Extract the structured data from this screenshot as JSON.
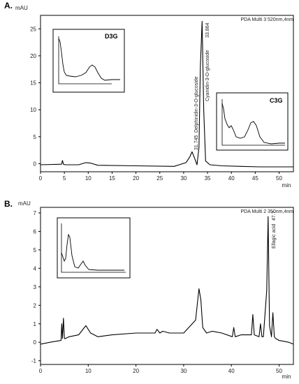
{
  "chart_data": [
    {
      "type": "line",
      "panel": "A.",
      "ylabel": "mAU",
      "xlabel": "min",
      "header": "PDA Multi 3 520nm,4nm",
      "xlim": [
        0,
        53
      ],
      "ylim": [
        -1.5,
        27.5
      ],
      "x_ticks": [
        "0",
        "5",
        "10",
        "15",
        "20",
        "25",
        "30",
        "35",
        "40",
        "45",
        "50"
      ],
      "y_ticks": [
        "0",
        "5",
        "10",
        "15",
        "20",
        "25"
      ],
      "series": [
        {
          "x": [
            0,
            4.4,
            4.6,
            4.8,
            5.2,
            8,
            9.5,
            10.5,
            12,
            20,
            28,
            30.5,
            31.3,
            31.75,
            32.3,
            32.8,
            33.2,
            33.5,
            33.86,
            34.2,
            34.6,
            35.5,
            38,
            42,
            46,
            50,
            53
          ],
          "y": [
            -0.2,
            -0.1,
            0.6,
            -0.1,
            -0.2,
            -0.2,
            0.2,
            0.1,
            -0.3,
            -0.4,
            -0.5,
            0.2,
            1.3,
            2.2,
            1.0,
            -0.2,
            3.0,
            18.0,
            26.4,
            10.0,
            0.5,
            -0.2,
            -0.4,
            -0.5,
            -0.6,
            -0.6,
            -0.6
          ]
        }
      ],
      "annotations": [
        {
          "text": "31.745",
          "x": 31.745
        },
        {
          "text": "Delphinidin-3-O-glucoside",
          "x": 31.745
        },
        {
          "text": "33.864",
          "x": 33.864
        },
        {
          "text": "Cyanidin-3-O-glucoside",
          "x": 33.864
        }
      ],
      "insets": [
        {
          "label": "D3G"
        },
        {
          "label": "C3G"
        }
      ]
    },
    {
      "type": "line",
      "panel": "B.",
      "ylabel": "mAU",
      "xlabel": "min",
      "header": "PDA Multi 2 350nm,4nm",
      "xlim": [
        0,
        53
      ],
      "ylim": [
        -1.2,
        7.3
      ],
      "x_ticks": [
        "0",
        "10",
        "20",
        "30",
        "40",
        "50"
      ],
      "y_ticks": [
        "-1",
        "0",
        "1",
        "2",
        "3",
        "4",
        "5",
        "6",
        "7"
      ],
      "series": [
        {
          "x": [
            0,
            2,
            4.3,
            4.45,
            4.6,
            4.8,
            5.0,
            5.2,
            6,
            8,
            9.5,
            10.5,
            12,
            15,
            20,
            24,
            24.4,
            25,
            25.6,
            27,
            30,
            32.5,
            33.2,
            33.6,
            34.0,
            34.8,
            36,
            38,
            40.2,
            40.5,
            40.8,
            42,
            44.2,
            44.5,
            44.8,
            45.8,
            46.1,
            46.4,
            46.7,
            47.4,
            47.7,
            48.0,
            48.4,
            48.7,
            49.0,
            49.3,
            50,
            52,
            53
          ],
          "y": [
            -0.1,
            0.0,
            0.1,
            1.0,
            0.2,
            1.3,
            0.2,
            0.2,
            0.3,
            0.4,
            0.9,
            0.5,
            0.3,
            0.4,
            0.5,
            0.5,
            0.7,
            0.5,
            0.6,
            0.5,
            0.5,
            1.2,
            2.9,
            2.3,
            0.8,
            0.5,
            0.6,
            0.5,
            0.3,
            0.8,
            0.3,
            0.4,
            0.4,
            1.5,
            0.4,
            0.3,
            1.0,
            0.3,
            0.3,
            2.8,
            6.8,
            0.9,
            0.3,
            1.6,
            0.3,
            0.2,
            0.1,
            0.0,
            -0.1
          ]
        }
      ],
      "annotations": [
        {
          "text": "Ellagic acid",
          "x": 47.7
        },
        {
          "text": "47.7",
          "x": 47.7
        }
      ]
    }
  ]
}
